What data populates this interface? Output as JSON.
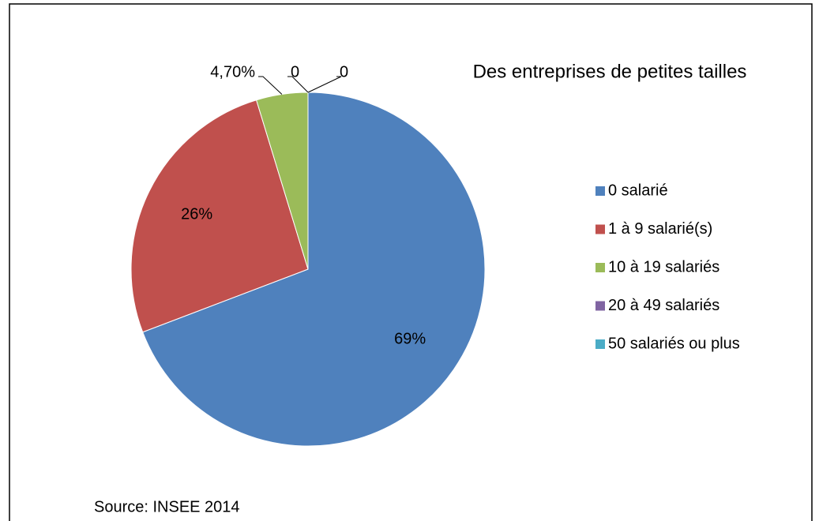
{
  "chart_data": {
    "type": "pie",
    "title": "Des entreprises de petites tailles",
    "categories": [
      "0 salarié",
      "1 à 9 salarié(s)",
      "10 à 19 salariés",
      "20 à 49 salariés",
      "50 salariés ou plus"
    ],
    "values": [
      69,
      26,
      4.7,
      0,
      0
    ],
    "value_labels": [
      "69%",
      "26%",
      "4,70%",
      "0",
      "0"
    ],
    "colors": [
      "#4f81bd",
      "#c0504d",
      "#9bbb59",
      "#8064a2",
      "#4bacc6"
    ],
    "legend": "right",
    "annotation": "Source: INSEE 2014"
  }
}
